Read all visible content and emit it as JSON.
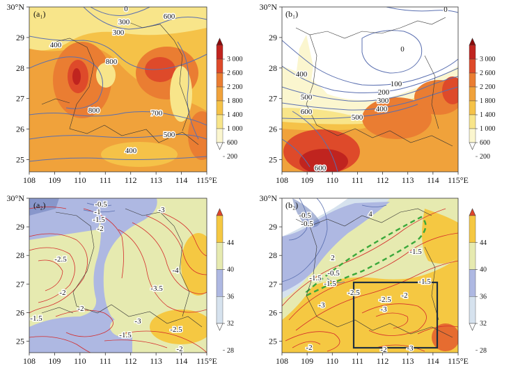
{
  "panels": [
    {
      "id": "a1",
      "label": "(a₁)",
      "type": "shaded+contour",
      "fill_regime": "warm",
      "contour_labels": [
        "0",
        "300",
        "300",
        "600",
        "400",
        "800",
        "800",
        "700",
        "500",
        "400"
      ]
    },
    {
      "id": "b1",
      "label": "(b₁)",
      "type": "shaded+contour",
      "fill_regime": "warm",
      "contour_labels": [
        "0",
        "0",
        "100",
        "200",
        "300",
        "400",
        "500",
        "400",
        "500",
        "600",
        "600"
      ]
    },
    {
      "id": "a2",
      "label": "(a₂)",
      "type": "shaded+contour",
      "fill_regime": "cool",
      "contour_labels": [
        "-0.5",
        "-1",
        "-1.5",
        "-2",
        "-3",
        "-2.5",
        "-4",
        "-2",
        "-2",
        "-3.5",
        "-1.5",
        "-3",
        "-1.5",
        "-2.5",
        "-2"
      ]
    },
    {
      "id": "b2",
      "label": "(b₂)",
      "type": "shaded+contour+box",
      "fill_regime": "cool",
      "contour_labels": [
        "4",
        "-0.5",
        "-0.5",
        "2",
        "-1.5",
        "-0.5",
        "-1.5",
        "-1.5",
        "-1.5",
        "-2.5",
        "-2.5",
        "-2",
        "-3",
        "-3",
        "-2",
        "-2",
        "-3"
      ]
    }
  ],
  "axes": {
    "x_ticks": [
      "108",
      "109",
      "110",
      "111",
      "112",
      "113",
      "114",
      "115°E"
    ],
    "y_ticks": [
      "25",
      "26",
      "27",
      "28",
      "29",
      "30°N"
    ]
  },
  "colorbar_top": {
    "labels": [
      "3 000",
      "2 600",
      "2 200",
      "1 800",
      "1 400",
      "1 000",
      "600",
      "200"
    ],
    "colors": [
      "#8b0a0a",
      "#c0241f",
      "#de4a2a",
      "#ea7d32",
      "#f0a23b",
      "#f5c248",
      "#f8e58a",
      "#fbf6cf",
      "#ffffff"
    ]
  },
  "colorbar_bottom": {
    "labels": [
      "44",
      "40",
      "36",
      "32",
      "28"
    ],
    "colors": [
      "#e0452a",
      "#f5c842",
      "#e6eab0",
      "#aeb8e2",
      "#d6e2ee",
      "#ffffff"
    ]
  },
  "colors": {
    "contour_blue": "#5a6fb0",
    "contour_red": "#d42b2b",
    "dashed_green": "#3aa83a",
    "box": "#1f2f3f"
  }
}
